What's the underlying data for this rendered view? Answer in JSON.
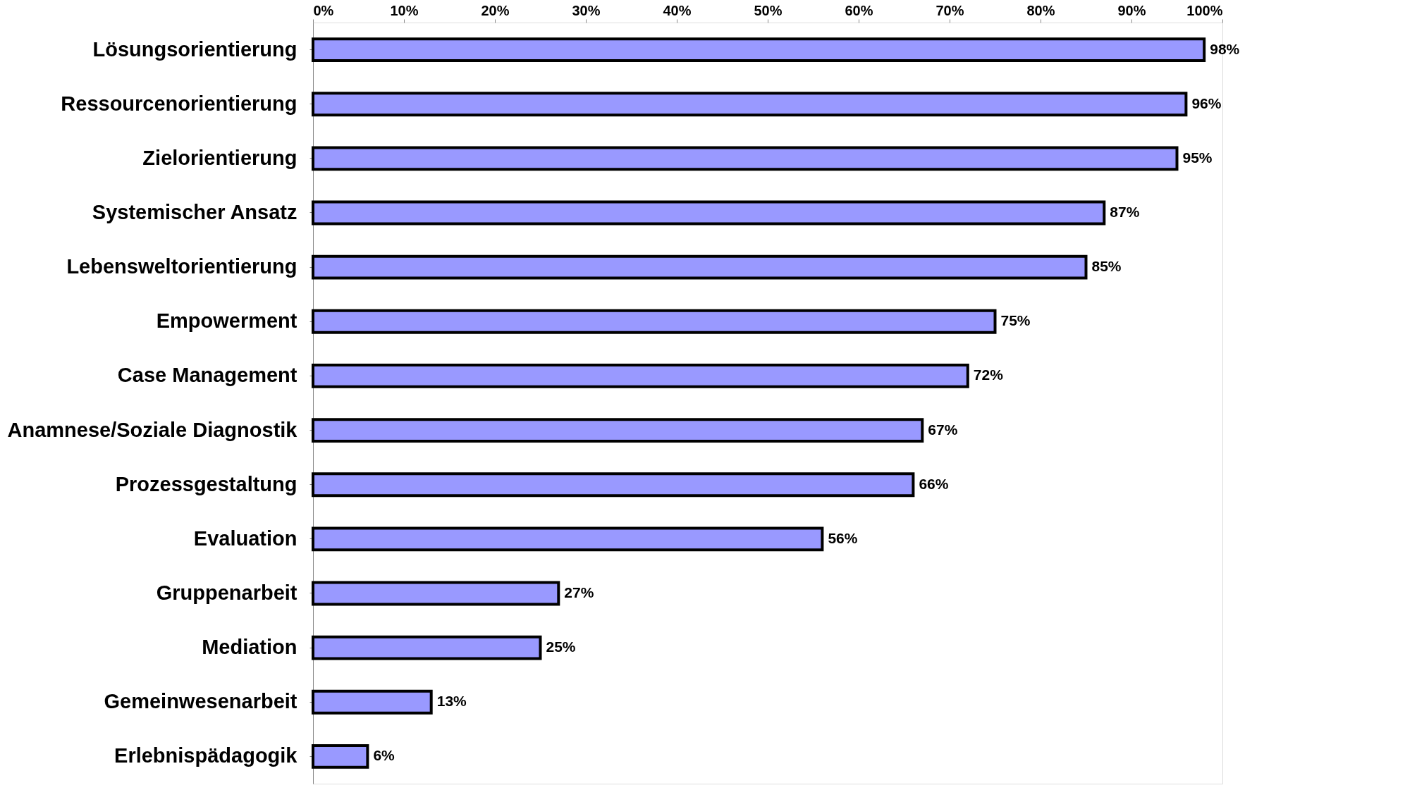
{
  "chart_data": {
    "type": "bar",
    "orientation": "horizontal",
    "categories": [
      "Lösungsorientierung",
      "Ressourcenorientierung",
      "Zielorientierung",
      "Systemischer Ansatz",
      "Lebensweltorientierung",
      "Empowerment",
      "Case Management",
      "Anamnese/Soziale Diagnostik",
      "Prozessgestaltung",
      "Evaluation",
      "Gruppenarbeit",
      "Mediation",
      "Gemeinwesenarbeit",
      "Erlebnispädagogik"
    ],
    "values": [
      98,
      96,
      95,
      87,
      85,
      75,
      72,
      67,
      66,
      56,
      27,
      25,
      13,
      6
    ],
    "value_labels": [
      "98%",
      "96%",
      "95%",
      "87%",
      "85%",
      "75%",
      "72%",
      "67%",
      "66%",
      "56%",
      "27%",
      "25%",
      "13%",
      "6%"
    ],
    "color": "#9999ff",
    "xlim": [
      0,
      100
    ],
    "xticks": [
      {
        "value": 0,
        "label": "0%"
      },
      {
        "value": 10,
        "label": "10%"
      },
      {
        "value": 20,
        "label": "20%"
      },
      {
        "value": 30,
        "label": "30%"
      },
      {
        "value": 40,
        "label": "40%"
      },
      {
        "value": 50,
        "label": "50%"
      },
      {
        "value": 60,
        "label": "60%"
      },
      {
        "value": 70,
        "label": "70%"
      },
      {
        "value": 80,
        "label": "80%"
      },
      {
        "value": 90,
        "label": "90%"
      },
      {
        "value": 100,
        "label": "100%"
      }
    ],
    "grid": false
  }
}
